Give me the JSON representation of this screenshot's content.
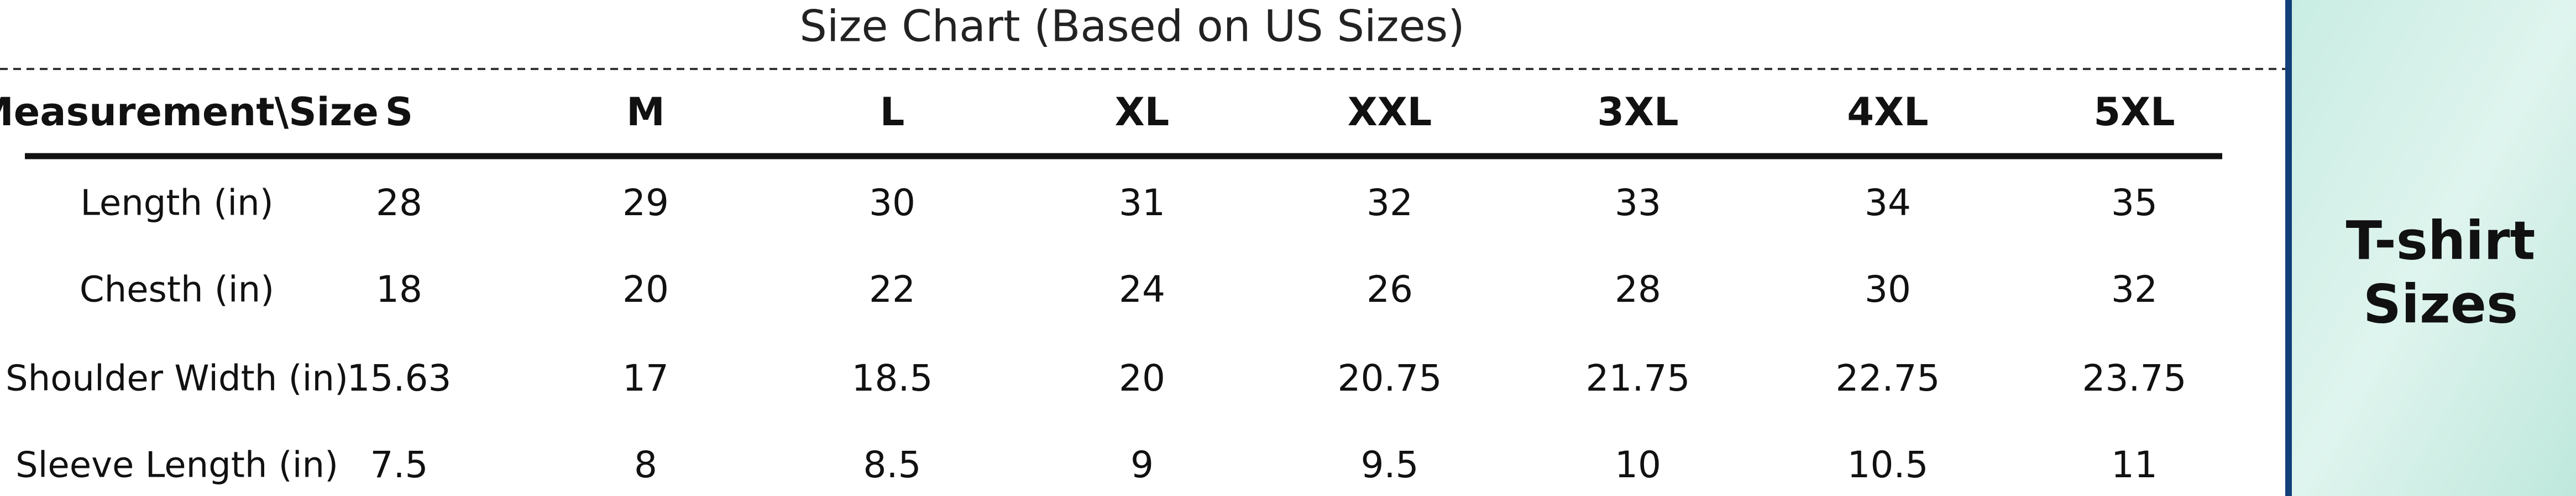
{
  "title": "Size Chart (Based on US Sizes)",
  "table": {
    "header": [
      "Measurement\\Size",
      "S",
      "M",
      "L",
      "XL",
      "XXL",
      "3XL",
      "4XL",
      "5XL"
    ],
    "rows": [
      [
        "Length (in)",
        "28",
        "29",
        "30",
        "31",
        "32",
        "33",
        "34",
        "35"
      ],
      [
        "Chesth (in)",
        "18",
        "20",
        "22",
        "24",
        "26",
        "28",
        "30",
        "32"
      ],
      [
        "Shoulder Width (in)",
        "15.63",
        "17",
        "18.5",
        "20",
        "20.75",
        "21.75",
        "22.75",
        "23.75"
      ],
      [
        "Sleeve Length (in)",
        "7.5",
        "8",
        "8.5",
        "9",
        "9.5",
        "10",
        "10.5",
        "11"
      ]
    ]
  },
  "side_panel": {
    "lines": [
      "T-shirt",
      "Sizes"
    ]
  }
}
